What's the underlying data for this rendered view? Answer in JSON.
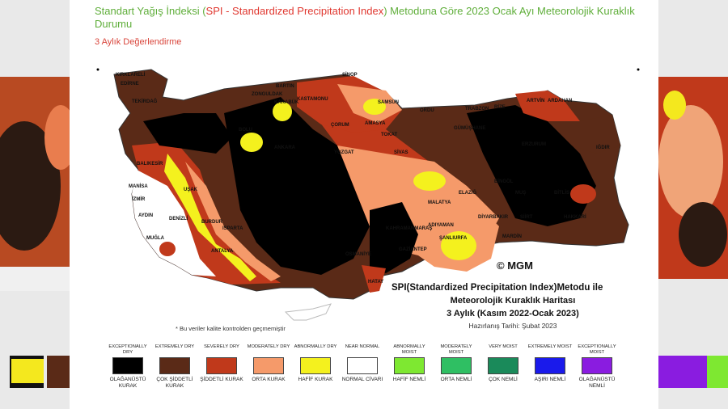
{
  "header": {
    "title_prefix": "Standart Yağış İndeksi (",
    "title_highlight": "SPI - Standardized Precipitation Index",
    "title_suffix": ") Metoduna Göre 2023 Ocak Ayı Meteorolojik Kuraklık Durumu",
    "subtitle": "3 Aylık Değerlendirme"
  },
  "map": {
    "labels": [
      "KIRKLARELİ",
      "EDİRNE",
      "TEKİRDAĞ",
      "BARTIN",
      "ZONGULDAK",
      "KASTAMONU",
      "SİNOP",
      "SAMSUN",
      "ORDU",
      "TRABZON",
      "RİZE",
      "ARTVİN",
      "ARDAHAN",
      "KARABÜK",
      "AMASYA",
      "GÜMÜŞHANE",
      "BOLU",
      "ÇORUM",
      "TOKAT",
      "ERZURUM",
      "IĞDIR",
      "YOZGAT",
      "SİVAS",
      "BİNGÖL",
      "BİTLİS",
      "BALIKESİR",
      "MANİSA",
      "İZMİR",
      "UŞAK",
      "ANKARA",
      "MALATYA",
      "ELAZIĞ",
      "MUŞ",
      "AYDIN",
      "DENİZLİ",
      "BURDUR",
      "ISPARTA",
      "KAHRAMANMARAŞ",
      "DİYARBAKIR",
      "SİİRT",
      "HAKKARİ",
      "MUĞLA",
      "ANTALYA",
      "ADIYAMAN",
      "ŞANLIURFA",
      "MARDİN",
      "GAZİANTEP",
      "OSMANİYE",
      "HATAY"
    ],
    "copyright": "© MGM",
    "note": "* Bu veriler kalite kontrolden geçmemiştir"
  },
  "caption": {
    "line1": "SPI(Standardized Precipitation Index)Metodu ile",
    "line2": "Meteorolojik Kuraklık Haritası",
    "line3": "3 Aylık (Kasım 2022-Ocak 2023)",
    "prepared": "Hazırlanış Tarihi: Şubat 2023"
  },
  "legend": [
    {
      "en": "EXCEPTIONALLY DRY",
      "tr": "OLAĞANÜSTÜ KURAK",
      "color": "#000000"
    },
    {
      "en": "EXTREMELY DRY",
      "tr": "ÇOK ŞİDDETLİ KURAK",
      "color": "#5a2a17"
    },
    {
      "en": "SEVERELY DRY",
      "tr": "ŞİDDETLİ KURAK",
      "color": "#c0391b"
    },
    {
      "en": "MODERATELY DRY",
      "tr": "ORTA KURAK",
      "color": "#f59a6a"
    },
    {
      "en": "ABNORMALLY DRY",
      "tr": "HAFİF KURAK",
      "color": "#f4f11e"
    },
    {
      "en": "NEAR NORMAL",
      "tr": "NORMAL CİVARI",
      "color": "#ffffff"
    },
    {
      "en": "ABNORMALLY MOIST",
      "tr": "HAFİF NEMLİ",
      "color": "#7ee831"
    },
    {
      "en": "MODERATELY MOIST",
      "tr": "ORTA NEMLİ",
      "color": "#2fbf63"
    },
    {
      "en": "VERY MOIST",
      "tr": "ÇOK NEMLİ",
      "color": "#1a8a5a"
    },
    {
      "en": "EXTREMELY MOIST",
      "tr": "AŞIRI NEMLİ",
      "color": "#1a1aeb"
    },
    {
      "en": "EXCEPTIONALLY MOIST",
      "tr": "OLAĞANÜSTÜ NEMLİ",
      "color": "#8a1ce0"
    }
  ]
}
